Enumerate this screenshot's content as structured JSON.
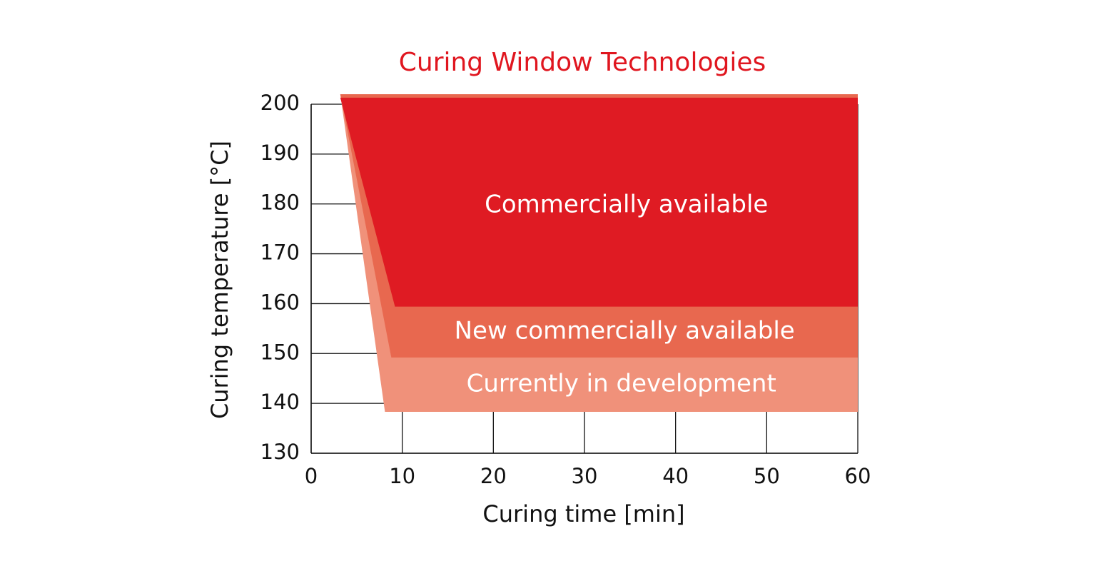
{
  "chart_data": {
    "type": "area",
    "title": "Curing Window Technologies",
    "x_label": "Curing time [min]",
    "y_label": "Curing temperature [°C]",
    "xlim": [
      0,
      60
    ],
    "xticks": [
      0,
      10,
      20,
      30,
      40,
      50,
      60
    ],
    "ylim": [
      130,
      200
    ],
    "yticks": [
      130,
      140,
      150,
      160,
      170,
      180,
      190,
      200
    ],
    "grid": true,
    "series": [
      {
        "name": "Currently in development",
        "color": "#f0917a",
        "x": [
          3.2,
          60,
          60,
          8.1
        ],
        "values": [
          202,
          202,
          138.3,
          138.3
        ]
      },
      {
        "name": "New commercially available",
        "color": "#e8684f",
        "x": [
          3.2,
          60,
          60,
          8.8
        ],
        "values": [
          202,
          202,
          149.2,
          149.2
        ]
      },
      {
        "name": "Commercially available",
        "color": "#df1b23",
        "x": [
          3.2,
          60,
          60,
          9.2
        ],
        "values": [
          201.3,
          201.3,
          159.4,
          159.4
        ]
      }
    ]
  }
}
